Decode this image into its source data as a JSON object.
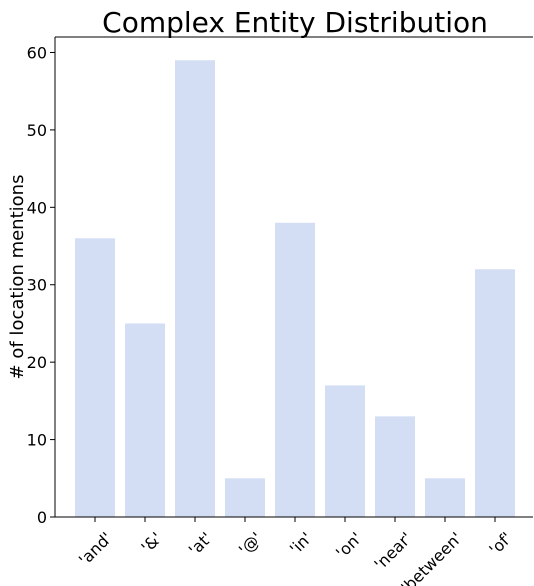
{
  "chart_data": {
    "type": "bar",
    "title": "Complex Entity Distribution",
    "xlabel": "",
    "ylabel": "# of location mentions",
    "categories": [
      "'and'",
      "'&'",
      "'at'",
      "'@'",
      "'in'",
      "'on'",
      "'near'",
      "'between'",
      "'of'"
    ],
    "values": [
      36,
      25,
      59,
      5,
      38,
      17,
      13,
      5,
      32
    ],
    "ylim": [
      0,
      62
    ],
    "yticks": [
      0,
      10,
      20,
      30,
      40,
      50,
      60
    ],
    "grid": false,
    "legend": "none",
    "bar_color": "#d3def5"
  }
}
